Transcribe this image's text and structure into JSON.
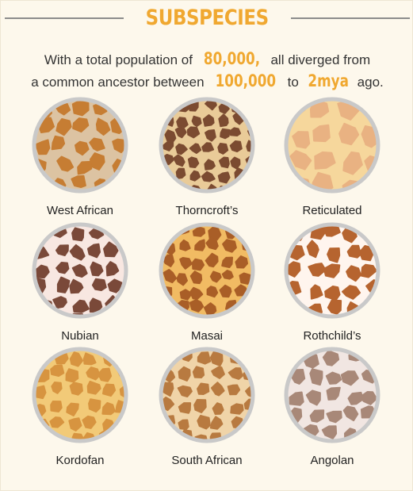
{
  "header": {
    "title": "SUBSPECIES"
  },
  "intro": {
    "parts": [
      "With a total population of",
      "80,000,",
      "all diverged from",
      "a common ancestor between",
      "100,000",
      "to",
      "2mya",
      "ago."
    ]
  },
  "subspecies": [
    {
      "name": "West African"
    },
    {
      "name": "Thorncroft’s"
    },
    {
      "name": "Reticulated"
    },
    {
      "name": "Nubian"
    },
    {
      "name": "Masai"
    },
    {
      "name": "Rothchild’s"
    },
    {
      "name": "Kordofan"
    },
    {
      "name": "South African"
    },
    {
      "name": "Angolan"
    }
  ]
}
